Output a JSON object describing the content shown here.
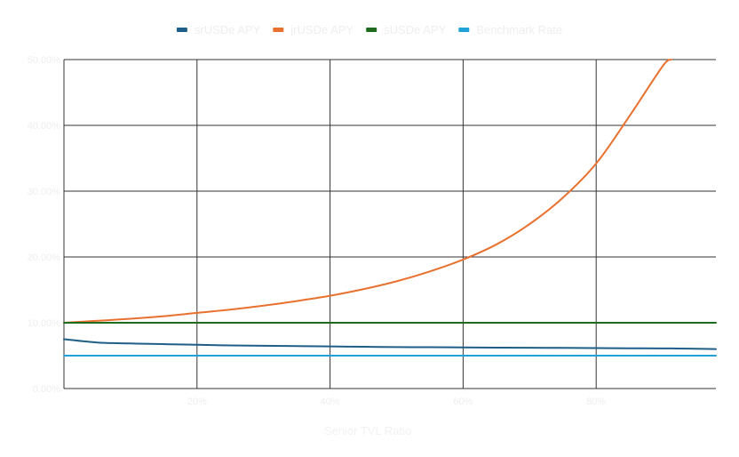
{
  "chart_data": {
    "type": "line",
    "title": "",
    "xlabel": "Senior TVL Ratio",
    "ylabel": "",
    "xlim": [
      0,
      98
    ],
    "ylim": [
      0,
      50
    ],
    "x_ticks": [
      20,
      40,
      60,
      80
    ],
    "x_tick_labels": [
      "20%",
      "40%",
      "60%",
      "80%"
    ],
    "y_ticks": [
      0,
      10,
      20,
      30,
      40,
      50
    ],
    "y_tick_labels": [
      "0.00%",
      "10.00%",
      "20.00%",
      "30.00%",
      "40.00%",
      "50.00%"
    ],
    "grid": true,
    "legend": "top",
    "x": [
      0,
      5,
      10,
      15,
      20,
      25,
      30,
      35,
      40,
      45,
      50,
      55,
      60,
      65,
      70,
      75,
      80,
      85,
      90,
      91.3,
      92,
      95,
      98
    ],
    "series": [
      {
        "name": "srUSDe APY",
        "color": "#1f5f87",
        "values": [
          7.5,
          7.0,
          6.85,
          6.75,
          6.65,
          6.55,
          6.5,
          6.45,
          6.4,
          6.35,
          6.3,
          6.28,
          6.25,
          6.22,
          6.2,
          6.18,
          6.15,
          6.12,
          6.1,
          6.1,
          6.08,
          6.05,
          6.0
        ]
      },
      {
        "name": "jrUSDe APY",
        "color": "#e8712f",
        "values": [
          10.0,
          10.3,
          10.6,
          11.0,
          11.5,
          12.0,
          12.6,
          13.3,
          14.1,
          15.1,
          16.3,
          17.8,
          19.6,
          21.9,
          25.0,
          29.0,
          34.2,
          41.4,
          49.0,
          50.0,
          null,
          null,
          null
        ]
      },
      {
        "name": "sUSDe APY",
        "color": "#1e6b1e",
        "values": [
          10,
          10,
          10,
          10,
          10,
          10,
          10,
          10,
          10,
          10,
          10,
          10,
          10,
          10,
          10,
          10,
          10,
          10,
          10,
          10,
          10,
          10,
          10
        ]
      },
      {
        "name": "Benchmark Rate",
        "color": "#1fa2d8",
        "values": [
          5,
          5,
          5,
          5,
          5,
          5,
          5,
          5,
          5,
          5,
          5,
          5,
          5,
          5,
          5,
          5,
          5,
          5,
          5,
          5,
          5,
          5,
          5
        ]
      }
    ]
  }
}
